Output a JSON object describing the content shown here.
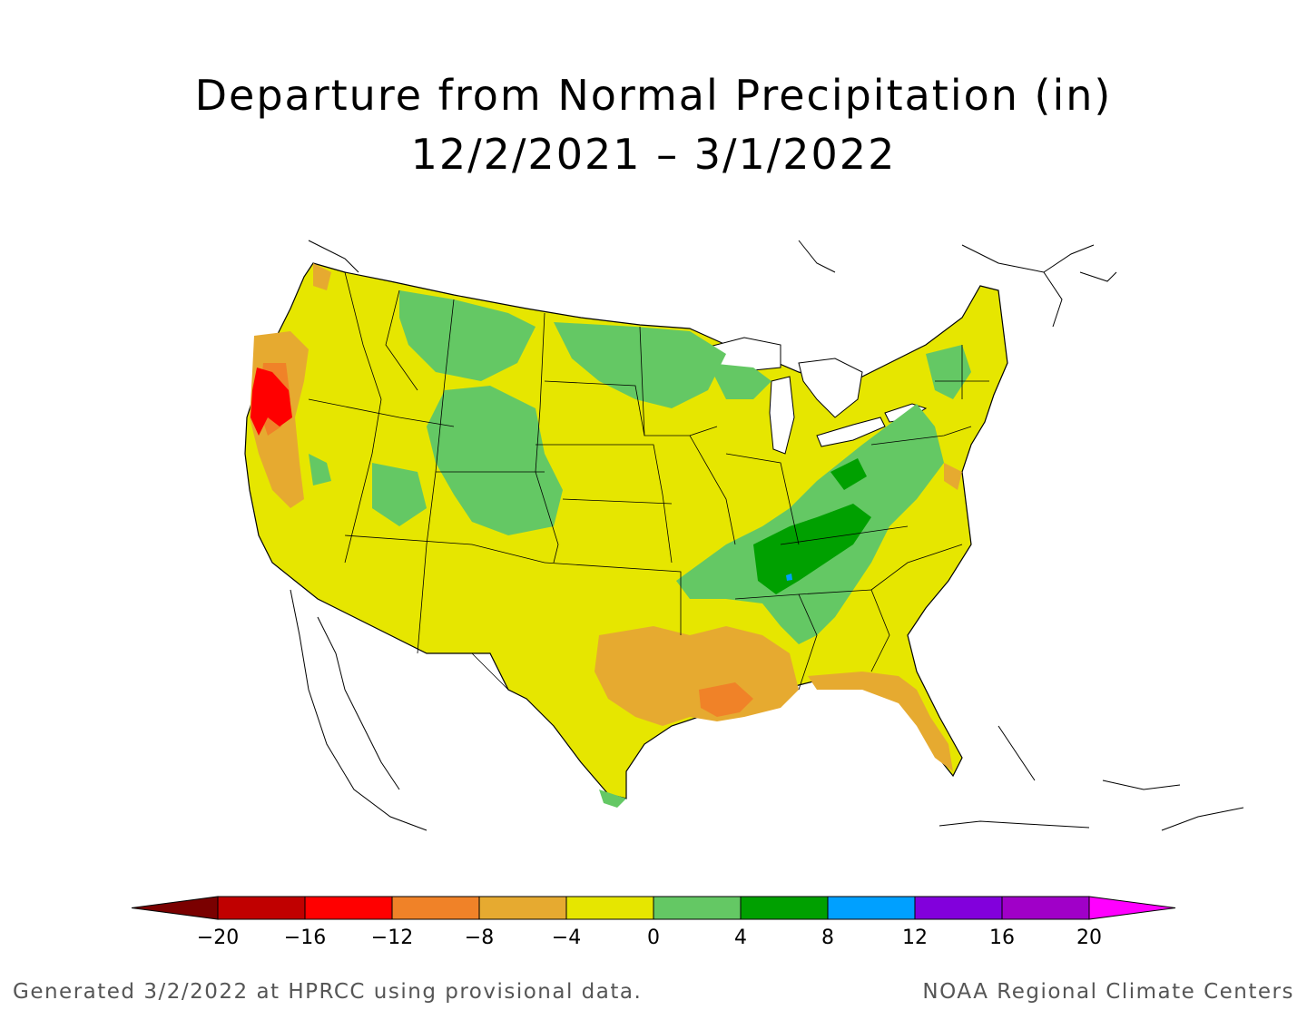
{
  "title": {
    "line1": "Departure from Normal Precipitation (in)",
    "line2": "12/2/2021 – 3/1/2022"
  },
  "colorbar": {
    "ticks": [
      "−20",
      "−16",
      "−12",
      "−8",
      "−4",
      "0",
      "4",
      "8",
      "12",
      "16",
      "20"
    ],
    "colors": [
      "#7a0000",
      "#c00000",
      "#ff0000",
      "#f08228",
      "#e6aa30",
      "#e6e600",
      "#64c864",
      "#00a000",
      "#00a0ff",
      "#8200dc",
      "#a000c8",
      "#ff00ff"
    ]
  },
  "footer": {
    "left": "Generated 3/2/2022 at HPRCC using provisional data.",
    "right": "NOAA Regional Climate Centers"
  }
}
